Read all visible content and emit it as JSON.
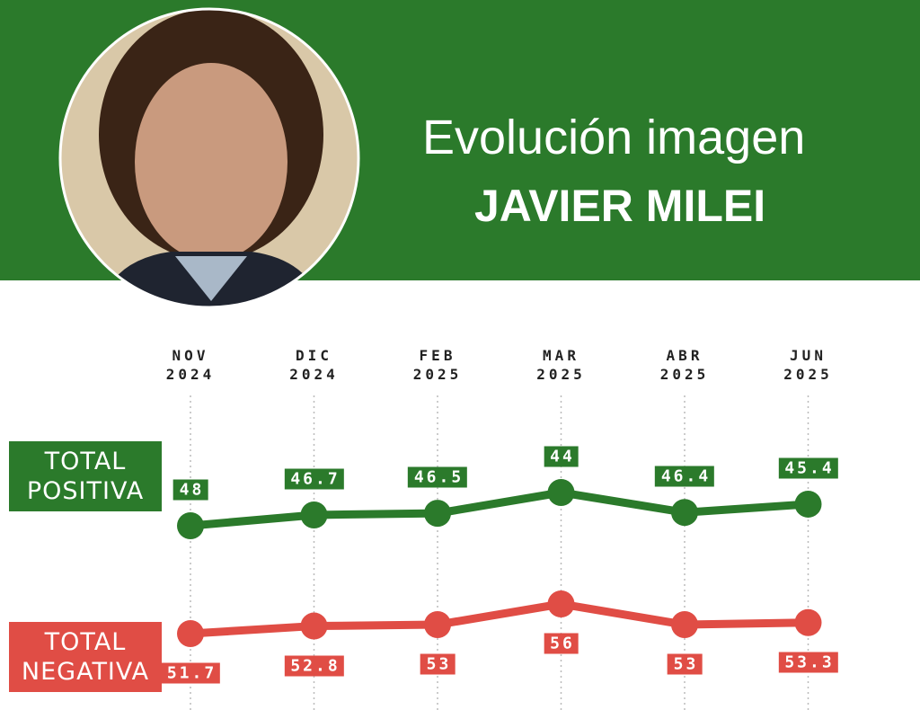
{
  "chart_data": {
    "type": "line",
    "title": "Evolución imagen",
    "subtitle": "JAVIER MILEI",
    "categories": [
      "NOV 2024",
      "DIC 2024",
      "FEB 2025",
      "MAR 2025",
      "ABR 2025",
      "JUN 2025"
    ],
    "series": [
      {
        "name": "TOTAL POSITIVA",
        "color": "#2b7a2b",
        "values": [
          48,
          46.7,
          46.5,
          44,
          46.4,
          45.4
        ]
      },
      {
        "name": "TOTAL NEGATIVA",
        "color": "#e04d45",
        "values": [
          51.7,
          52.8,
          53,
          56,
          53,
          53.3
        ]
      }
    ]
  }
}
